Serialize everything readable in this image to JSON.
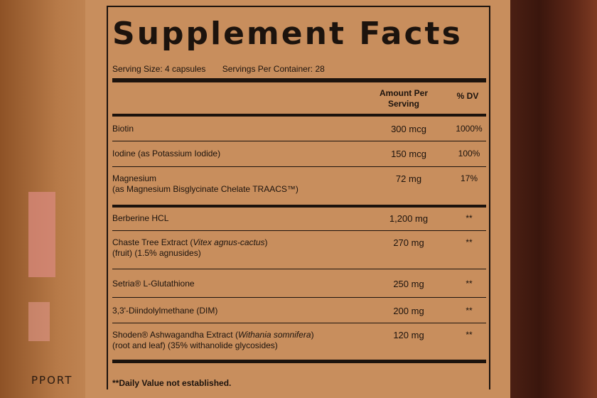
{
  "label": {
    "title": "Supplement Facts",
    "serving_size": "Serving Size: 4 capsules",
    "servings_per_container": "Servings Per Container: 28",
    "header_amount": "Amount Per Serving",
    "header_dv": "% DV",
    "rows": [
      {
        "name": "Biotin",
        "amount": "300 mcg",
        "dv": "1000%"
      },
      {
        "name": "Iodine (as Potassium Iodide)",
        "amount": "150 mcg",
        "dv": "100%"
      },
      {
        "name": "Magnesium",
        "sub": "(as Magnesium Bisglycinate Chelate TRAACS™)",
        "amount": "72 mg",
        "dv": "17%"
      },
      {
        "name": "Berberine HCL",
        "amount": "1,200 mg",
        "dv": "**"
      },
      {
        "name": "Chaste Tree Extract (",
        "italic": "Vitex agnus-cactus",
        "name_end": ")",
        "sub": "(fruit) (1.5% agnusides)",
        "amount": "270 mg",
        "dv": "**"
      },
      {
        "name": "Setria® L-Glutathione",
        "amount": "250 mg",
        "dv": "**"
      },
      {
        "name": "3,3'-Diindolylmethane (DIM)",
        "amount": "200 mg",
        "dv": "**"
      },
      {
        "name": "Shoden® Ashwagandha Extract (",
        "italic": "Withania somnifera",
        "name_end": ")",
        "sub": "(root and leaf) (35% withanolide glycosides)",
        "amount": "120 mg",
        "dv": "**"
      }
    ],
    "footnote": "**Daily Value not established."
  },
  "bottle": {
    "left_text": "PPORT"
  },
  "colors": {
    "label": "#c88e5d",
    "ink": "#1c130d",
    "bottle_dark": "#3a160d",
    "accent_pink": "#d98a7d"
  }
}
